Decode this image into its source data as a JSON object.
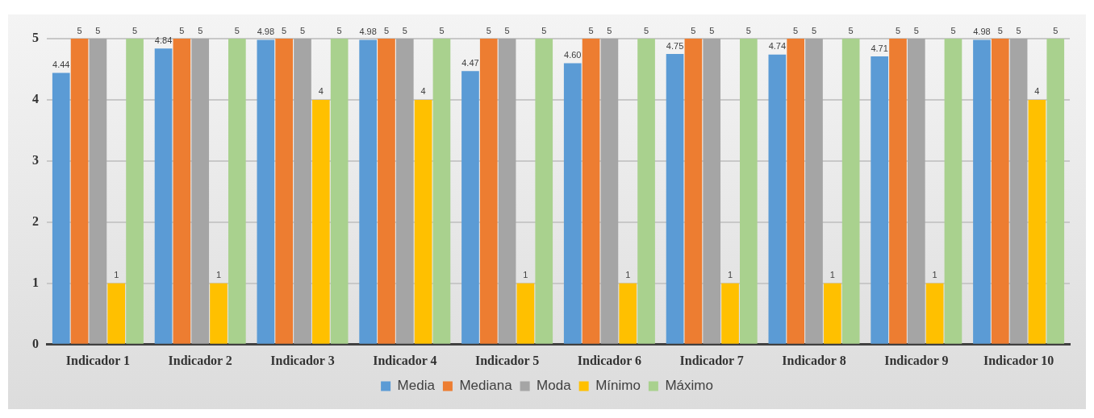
{
  "chart_data": {
    "type": "bar",
    "categories": [
      "Indicador 1",
      "Indicador 2",
      "Indicador 3",
      "Indicador 4",
      "Indicador 5",
      "Indicador 6",
      "Indicador 7",
      "Indicador 8",
      "Indicador 9",
      "Indicador 10"
    ],
    "series": [
      {
        "name": "Media",
        "color": "#5b9bd5",
        "values": [
          4.44,
          4.84,
          4.98,
          4.98,
          4.47,
          4.6,
          4.75,
          4.74,
          4.71,
          4.98
        ],
        "value_labels": [
          "4.44",
          "4.84",
          "4.98",
          "4.98",
          "4.47",
          "4.60",
          "4.75",
          "4.74",
          "4.71",
          "4.98"
        ]
      },
      {
        "name": "Mediana",
        "color": "#ed7d31",
        "values": [
          5,
          5,
          5,
          5,
          5,
          5,
          5,
          5,
          5,
          5
        ],
        "value_labels": [
          "5",
          "5",
          "5",
          "5",
          "5",
          "5",
          "5",
          "5",
          "5",
          "5"
        ]
      },
      {
        "name": "Moda",
        "color": "#a5a5a5",
        "values": [
          5,
          5,
          5,
          5,
          5,
          5,
          5,
          5,
          5,
          5
        ],
        "value_labels": [
          "5",
          "5",
          "5",
          "5",
          "5",
          "5",
          "5",
          "5",
          "5",
          "5"
        ]
      },
      {
        "name": "Mínimo",
        "color": "#ffc000",
        "values": [
          1,
          1,
          4,
          4,
          1,
          1,
          1,
          1,
          1,
          4
        ],
        "value_labels": [
          "1",
          "1",
          "4",
          "4",
          "1",
          "1",
          "1",
          "1",
          "1",
          "4"
        ]
      },
      {
        "name": "Máximo",
        "color": "#a9d18e",
        "values": [
          5,
          5,
          5,
          5,
          5,
          5,
          5,
          5,
          5,
          5
        ],
        "value_labels": [
          "5",
          "5",
          "5",
          "5",
          "5",
          "5",
          "5",
          "5",
          "5",
          "5"
        ]
      }
    ],
    "ylim": [
      0,
      5
    ],
    "yticks": [
      0,
      1,
      2,
      3,
      4,
      5
    ],
    "grid": "y",
    "legend": "bottom"
  }
}
